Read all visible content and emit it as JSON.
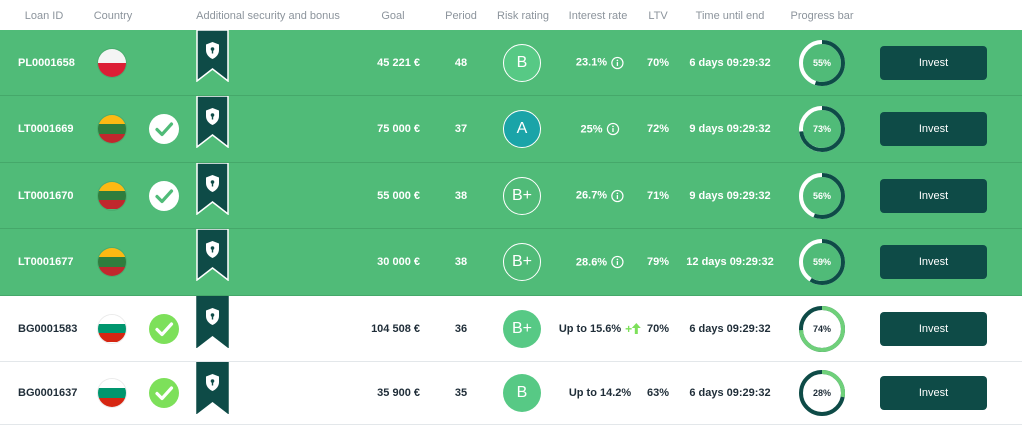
{
  "headers": {
    "loan_id": "Loan ID",
    "country": "Country",
    "security": "Additional security and bonus",
    "goal": "Goal",
    "period": "Period",
    "risk": "Risk rating",
    "interest": "Interest rate",
    "ltv": "LTV",
    "time": "Time until end",
    "progress": "Progress bar"
  },
  "colors": {
    "green_row": "#50bb78",
    "dark_teal": "#0e4b47",
    "risk_b": "#57c985",
    "risk_a": "#1aa4a8",
    "gauge_track_green": "#ffffff",
    "gauge_fill_dark": "#0e4b47",
    "gauge_fill_light": "#6fd07a",
    "check_light": "#7de05a",
    "up_arrow": "#7de05a"
  },
  "loans": [
    {
      "id": "PL0001658",
      "country": "PL",
      "flag": [
        "#f4f4f4",
        "#dc1e35"
      ],
      "guarantee": false,
      "security_icon": "shield-bookmark-icon",
      "goal": "45 221 €",
      "period": "48",
      "risk": "B",
      "risk_style": "solid-b",
      "rate": "23.1%",
      "rate_icon": "info-icon",
      "ltv": "70%",
      "time": "6 days 09:29:32",
      "progress": 55,
      "progress_label": "55%",
      "action": "Invest",
      "highlight": true
    },
    {
      "id": "LT0001669",
      "country": "LT",
      "flag": [
        "#fdb913",
        "#2f7d3d",
        "#c1272d"
      ],
      "guarantee": true,
      "security_icon": "shield-bookmark-icon",
      "goal": "75 000 €",
      "period": "37",
      "risk": "A",
      "risk_style": "solid-a",
      "rate": "25%",
      "rate_icon": "info-icon",
      "ltv": "72%",
      "time": "9 days 09:29:32",
      "progress": 73,
      "progress_label": "73%",
      "action": "Invest",
      "highlight": true
    },
    {
      "id": "LT0001670",
      "country": "LT",
      "flag": [
        "#fdb913",
        "#2f7d3d",
        "#c1272d"
      ],
      "guarantee": true,
      "security_icon": "shield-bookmark-icon",
      "goal": "55 000 €",
      "period": "38",
      "risk": "B+",
      "risk_style": "outline",
      "rate": "26.7%",
      "rate_icon": "info-icon",
      "ltv": "71%",
      "time": "9 days 09:29:32",
      "progress": 56,
      "progress_label": "56%",
      "action": "Invest",
      "highlight": true
    },
    {
      "id": "LT0001677",
      "country": "LT",
      "flag": [
        "#fdb913",
        "#2f7d3d",
        "#c1272d"
      ],
      "guarantee": false,
      "security_icon": "shield-bookmark-icon",
      "goal": "30 000 €",
      "period": "38",
      "risk": "B+",
      "risk_style": "outline",
      "rate": "28.6%",
      "rate_icon": "info-icon",
      "ltv": "79%",
      "time": "12 days 09:29:32",
      "progress": 59,
      "progress_label": "59%",
      "action": "Invest",
      "highlight": true
    },
    {
      "id": "BG0001583",
      "country": "BG",
      "flag": [
        "#ffffff",
        "#00966e",
        "#d62612"
      ],
      "guarantee": true,
      "security_icon": "shield-bookmark-icon",
      "goal": "104 508 €",
      "period": "36",
      "risk": "B+",
      "risk_style": "solid-b",
      "rate": "Up to 15.6%",
      "rate_icon": "bonus-up-arrow-icon",
      "rate_suffix": "+",
      "ltv": "70%",
      "time": "6 days 09:29:32",
      "progress": 74,
      "progress_label": "74%",
      "action": "Invest",
      "highlight": false
    },
    {
      "id": "BG0001637",
      "country": "BG",
      "flag": [
        "#ffffff",
        "#00966e",
        "#d62612"
      ],
      "guarantee": true,
      "security_icon": "shield-bookmark-icon",
      "goal": "35 900 €",
      "period": "35",
      "risk": "B",
      "risk_style": "solid-b",
      "rate": "Up to 14.2%",
      "rate_icon": "",
      "ltv": "63%",
      "time": "6 days 09:29:32",
      "progress": 28,
      "progress_label": "28%",
      "action": "Invest",
      "highlight": false
    }
  ]
}
